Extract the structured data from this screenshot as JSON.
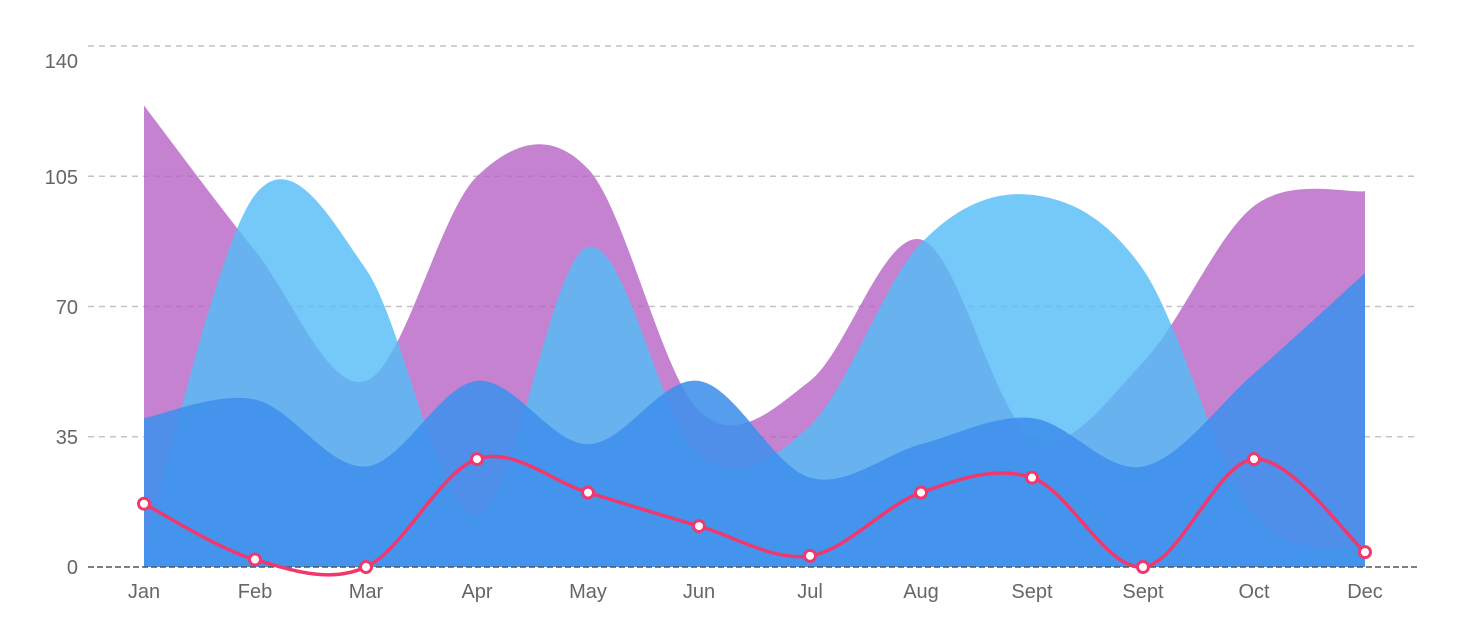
{
  "chart_data": {
    "type": "area",
    "title": "",
    "xlabel": "",
    "ylabel": "",
    "categories": [
      "Jan",
      "Feb",
      "Mar",
      "Apr",
      "May",
      "Jun",
      "Jul",
      "Aug",
      "Sept",
      "Sept",
      "Oct",
      "Dec"
    ],
    "yticks": [
      "0",
      "35",
      "70",
      "105",
      "140"
    ],
    "ylim": [
      0,
      140
    ],
    "grid": true,
    "series": [
      {
        "type": "area",
        "color": "#b35fc4",
        "values": [
          124,
          85,
          50,
          105,
          107,
          42,
          50,
          88,
          35,
          55,
          97,
          101
        ]
      },
      {
        "type": "area",
        "color": "#55bdf6",
        "values": [
          5,
          100,
          80,
          14,
          86,
          30,
          38,
          87,
          100,
          80,
          14,
          5
        ]
      },
      {
        "type": "area",
        "color": "#3f8fec",
        "values": [
          40,
          45,
          27,
          50,
          33,
          50,
          24,
          33,
          40,
          27,
          52,
          79
        ]
      },
      {
        "type": "line",
        "color": "#f0386e",
        "values": [
          17,
          2,
          0,
          29,
          20,
          11,
          3,
          20,
          24,
          0,
          29,
          4
        ]
      }
    ]
  }
}
